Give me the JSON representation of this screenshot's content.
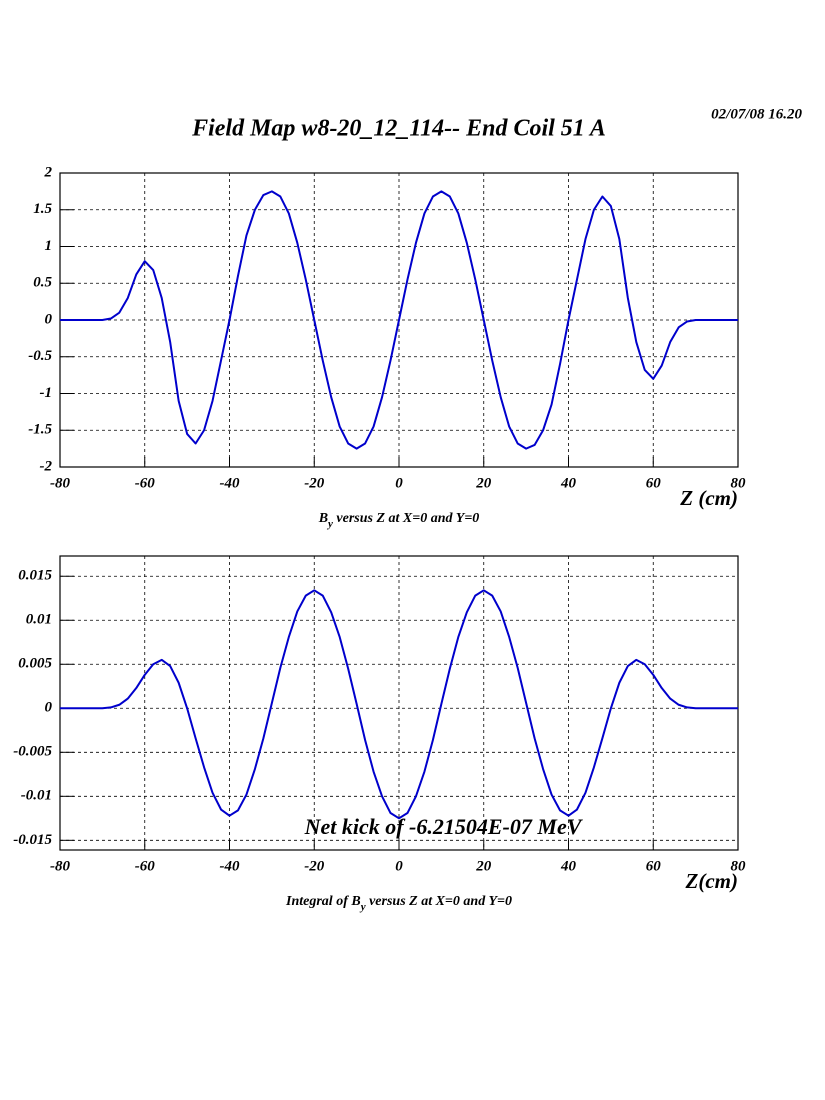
{
  "header": {
    "date": "02/07/08   16.20",
    "title": "Field Map w8-20_12_114-- End Coil 51 A"
  },
  "chart_data": [
    {
      "type": "line",
      "xlabel": "Z (cm)",
      "caption": [
        "B",
        "y",
        " versus Z at X=0 and Y=0"
      ],
      "x": [
        -80,
        -78,
        -76,
        -74,
        -72,
        -70,
        -68,
        -66,
        -64,
        -62,
        -60,
        -58,
        -56,
        -54,
        -52,
        -50,
        -48,
        -46,
        -44,
        -42,
        -40,
        -38,
        -36,
        -34,
        -32,
        -30,
        -28,
        -26,
        -24,
        -22,
        -20,
        -18,
        -16,
        -14,
        -12,
        -10,
        -8,
        -6,
        -4,
        -2,
        0,
        2,
        4,
        6,
        8,
        10,
        12,
        14,
        16,
        18,
        20,
        22,
        24,
        26,
        28,
        30,
        32,
        34,
        36,
        38,
        40,
        42,
        44,
        46,
        48,
        50,
        52,
        54,
        56,
        58,
        60,
        62,
        64,
        66,
        68,
        70,
        72,
        74,
        76,
        78,
        80
      ],
      "series": [
        {
          "color": "#0000cc",
          "values": [
            0,
            0,
            0,
            0,
            0,
            0,
            0.02,
            0.1,
            0.3,
            0.62,
            0.8,
            0.68,
            0.3,
            -0.3,
            -1.1,
            -1.55,
            -1.68,
            -1.5,
            -1.1,
            -0.55,
            0,
            0.6,
            1.15,
            1.5,
            1.7,
            1.75,
            1.68,
            1.45,
            1.05,
            0.55,
            0,
            -0.55,
            -1.05,
            -1.45,
            -1.68,
            -1.75,
            -1.68,
            -1.45,
            -1.05,
            -0.55,
            0,
            0.55,
            1.05,
            1.45,
            1.68,
            1.75,
            1.68,
            1.45,
            1.05,
            0.55,
            0,
            -0.55,
            -1.05,
            -1.45,
            -1.68,
            -1.75,
            -1.7,
            -1.5,
            -1.15,
            -0.6,
            0,
            0.55,
            1.1,
            1.5,
            1.68,
            1.55,
            1.1,
            0.3,
            -0.3,
            -0.68,
            -0.8,
            -0.62,
            -0.3,
            -0.1,
            -0.02,
            0,
            0,
            0,
            0,
            0,
            0
          ]
        }
      ],
      "xlim": [
        -80,
        80
      ],
      "xticks": [
        -80,
        -60,
        -40,
        -20,
        0,
        20,
        40,
        60,
        80
      ],
      "ylim": [
        -2,
        2
      ],
      "yticks": [
        -2,
        -1.5,
        -1,
        -0.5,
        0,
        0.5,
        1,
        1.5,
        2
      ],
      "grid": true
    },
    {
      "type": "line",
      "xlabel": "Z(cm)",
      "caption": [
        "Integral of B",
        "y",
        " versus Z at X=0 and Y=0"
      ],
      "annotation": "Net kick of -6.21504E-07 MeV",
      "annotation_color": "#1a1acc",
      "x": [
        -80,
        -78,
        -76,
        -74,
        -72,
        -70,
        -68,
        -66,
        -64,
        -62,
        -60,
        -58,
        -56,
        -54,
        -52,
        -50,
        -48,
        -46,
        -44,
        -42,
        -40,
        -38,
        -36,
        -34,
        -32,
        -30,
        -28,
        -26,
        -24,
        -22,
        -20,
        -18,
        -16,
        -14,
        -12,
        -10,
        -8,
        -6,
        -4,
        -2,
        0,
        2,
        4,
        6,
        8,
        10,
        12,
        14,
        16,
        18,
        20,
        22,
        24,
        26,
        28,
        30,
        32,
        34,
        36,
        38,
        40,
        42,
        44,
        46,
        48,
        50,
        52,
        54,
        56,
        58,
        60,
        62,
        64,
        66,
        68,
        70,
        72,
        74,
        76,
        78,
        80
      ],
      "series": [
        {
          "color": "#0000cc",
          "values": [
            0,
            0,
            0,
            0,
            0,
            0,
            0.0001,
            0.0004,
            0.0011,
            0.0023,
            0.0038,
            0.005,
            0.0055,
            0.0048,
            0.0029,
            0,
            -0.0034,
            -0.0067,
            -0.0096,
            -0.0115,
            -0.0122,
            -0.0116,
            -0.0098,
            -0.0069,
            -0.0034,
            0.0006,
            0.0046,
            0.0081,
            0.011,
            0.0128,
            0.0134,
            0.0128,
            0.0109,
            0.0081,
            0.0045,
            0.0005,
            -0.0036,
            -0.0072,
            -0.01,
            -0.0119,
            -0.0125,
            -0.0119,
            -0.01,
            -0.0072,
            -0.0036,
            0.0005,
            0.0045,
            0.0081,
            0.0109,
            0.0128,
            0.0134,
            0.0128,
            0.011,
            0.0081,
            0.0046,
            0.0006,
            -0.0034,
            -0.0069,
            -0.0098,
            -0.0116,
            -0.0122,
            -0.0115,
            -0.0096,
            -0.0067,
            -0.0034,
            0,
            0.0029,
            0.0048,
            0.0055,
            0.005,
            0.0038,
            0.0023,
            0.0011,
            0.0004,
            0.0001,
            0,
            0,
            0,
            0,
            0,
            0
          ]
        }
      ],
      "xlim": [
        -80,
        80
      ],
      "xticks": [
        -80,
        -60,
        -40,
        -20,
        0,
        20,
        40,
        60,
        80
      ],
      "ylim": [
        -0.0161,
        0.0173
      ],
      "yticks": [
        -0.015,
        -0.01,
        -0.005,
        0,
        0.005,
        0.01,
        0.015
      ],
      "grid": true
    }
  ]
}
